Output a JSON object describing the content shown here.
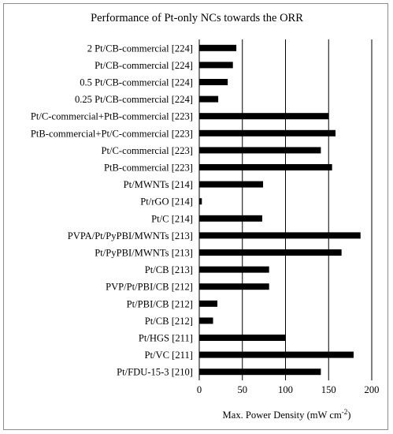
{
  "chart_data": {
    "type": "bar",
    "orientation": "horizontal",
    "title": "Performance of Pt-only NCs towards the ORR",
    "xlabel": "Max. Power Density (mW cm",
    "xlabel_sup": "-2",
    "xlabel_close": ")",
    "xlim": [
      0,
      200
    ],
    "xticks": [
      "0",
      "50",
      "100",
      "150",
      "200"
    ],
    "grid": true,
    "bar_color": "#000000",
    "categories": [
      "2 Pt/CB-commercial [224]",
      "Pt/CB-commercial [224]",
      "0.5 Pt/CB-commercial [224]",
      "0.25 Pt/CB-commercial [224]",
      "Pt/C-commercial+PtB-commercial [223]",
      "PtB-commercial+Pt/C-commercial [223]",
      "Pt/C-commercial [223]",
      "PtB-commercial [223]",
      "Pt/MWNTs [214]",
      "Pt/rGO [214]",
      "Pt/C [214]",
      "PVPA/Pt/PyPBI/MWNTs [213]",
      "Pt/PyPBI/MWNTs [213]",
      "Pt/CB [213]",
      "PVP/Pt/PBI/CB [212]",
      "Pt/PBI/CB [212]",
      "Pt/CB [212]",
      "Pt/HGS [211]",
      "Pt/VC [211]",
      "Pt/FDU-15-3 [210]"
    ],
    "values": [
      43,
      39,
      33,
      22,
      150,
      158,
      141,
      154,
      74,
      3,
      73,
      187,
      165,
      81,
      81,
      21,
      16,
      100,
      179,
      141
    ]
  }
}
